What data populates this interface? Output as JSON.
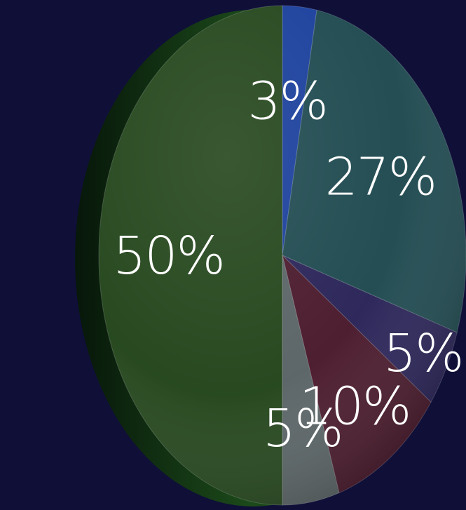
{
  "chart_data": {
    "type": "pie",
    "style": "3d-tilted",
    "title": "",
    "slices": [
      {
        "label": "3%",
        "value": 3,
        "color": "#1a3f9c"
      },
      {
        "label": "27%",
        "value": 27,
        "color": "#1f4a50"
      },
      {
        "label": "5%",
        "value": 5,
        "color": "#2a2458"
      },
      {
        "label": "10%",
        "value": 10,
        "color": "#4a1a2c"
      },
      {
        "label": "5%",
        "value": 5,
        "color": "#5a6466"
      },
      {
        "label": "50%",
        "value": 50,
        "color": "#24461c"
      }
    ],
    "background": "#0f0f38",
    "label_color": "#ffffff",
    "edge_color": "#0e2a0c"
  }
}
